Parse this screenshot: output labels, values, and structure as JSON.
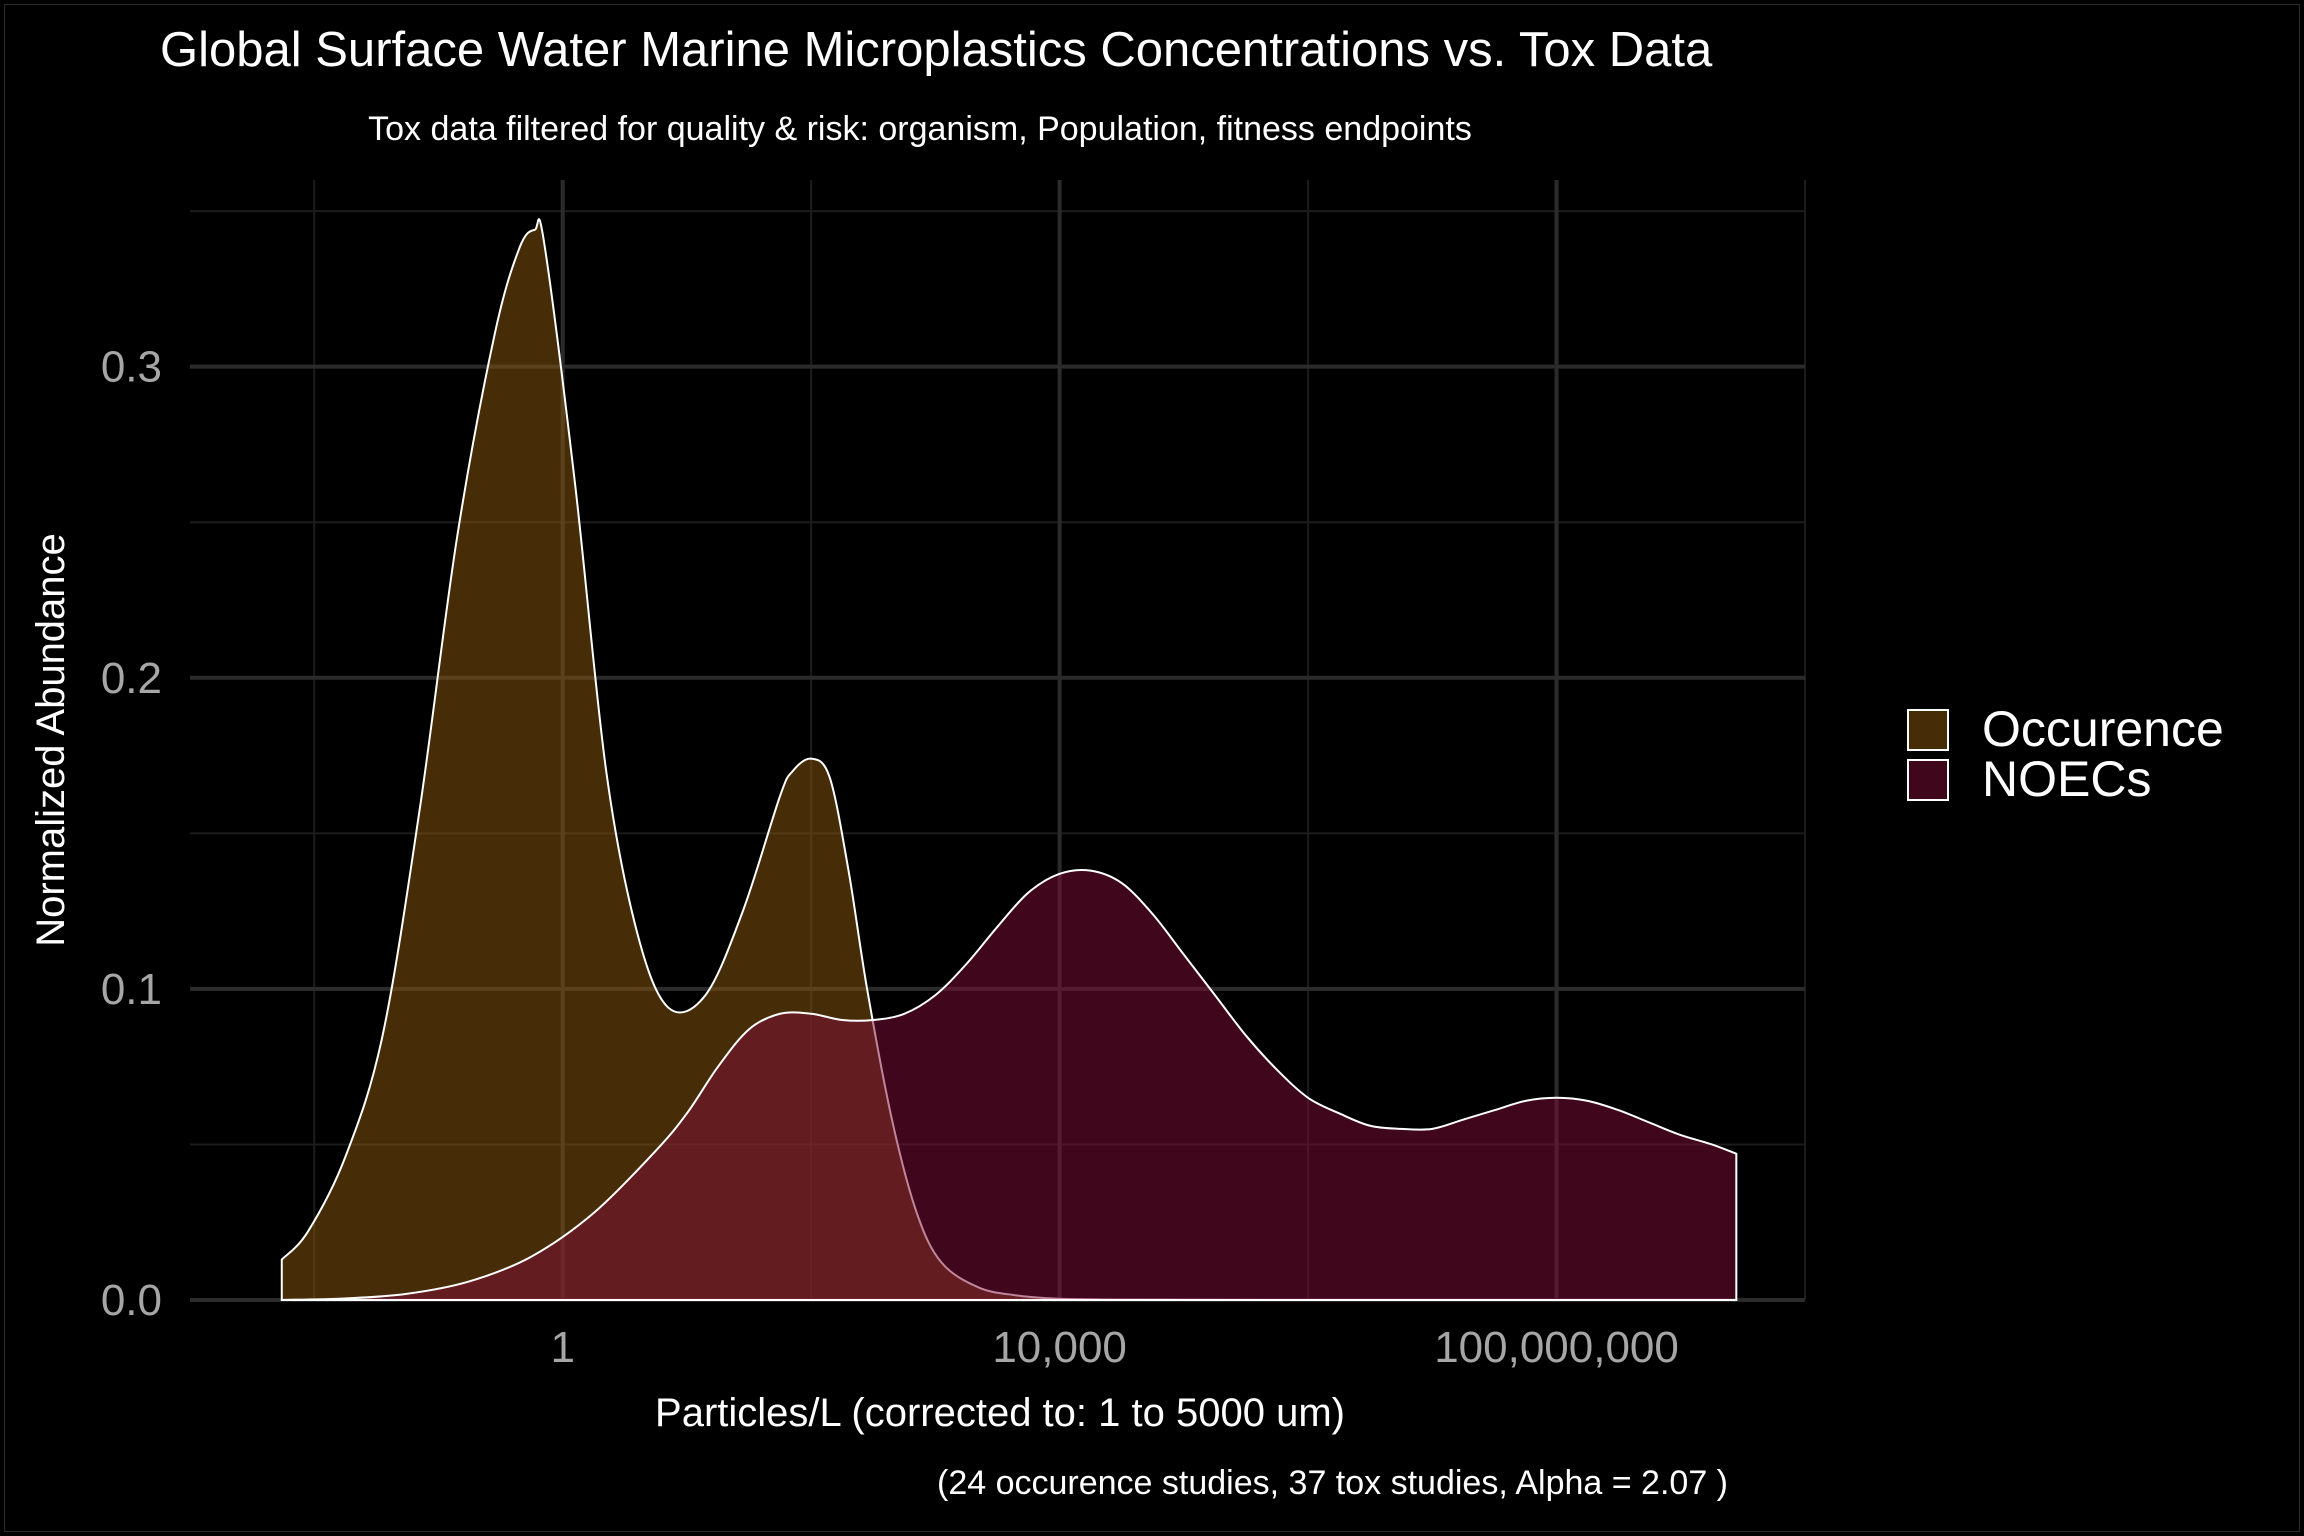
{
  "chart_data": {
    "type": "area",
    "title": "Global Surface Water Marine Microplastics Concentrations vs. Tox Data",
    "subtitle": "Tox data filtered for quality & risk: organism, Population, fitness endpoints",
    "xlabel": "Particles/L (corrected to: 1 to 5000 um)",
    "ylabel": "Normalized Abundance",
    "caption": "(24 occurence studies, 37 tox studies, Alpha =  2.07 )",
    "x_scale": "log10",
    "xlim": [
      0.001,
      10000000000.0
    ],
    "ylim": [
      0,
      0.36
    ],
    "x_ticks": [
      {
        "value": 1,
        "label": "1"
      },
      {
        "value": 10000,
        "label": "10,000"
      },
      {
        "value": 100000000,
        "label": "100,000,000"
      }
    ],
    "y_ticks": [
      {
        "value": 0.0,
        "label": "0.0"
      },
      {
        "value": 0.1,
        "label": "0.1"
      },
      {
        "value": 0.2,
        "label": "0.2"
      },
      {
        "value": 0.3,
        "label": "0.3"
      }
    ],
    "grid": true,
    "legend_position": "right",
    "series": [
      {
        "name": "Occurence",
        "color": "#8b5a0f",
        "x": [
          0.00548,
          0.0089,
          0.0178,
          0.0355,
          0.0708,
          0.141,
          0.282,
          0.447,
          0.596,
          0.708,
          1.26,
          2.24,
          3.98,
          7.08,
          14.1,
          28.2,
          56.2,
          71,
          100,
          141,
          200,
          282,
          447,
          708,
          1122,
          2239,
          4467,
          8913,
          17783,
          35481,
          1000000.0,
          100000000.0,
          1000000000.0,
          2800000000.0
        ],
        "y": [
          0.013,
          0.022,
          0.046,
          0.085,
          0.158,
          0.245,
          0.31,
          0.338,
          0.344,
          0.34,
          0.262,
          0.17,
          0.118,
          0.094,
          0.098,
          0.125,
          0.162,
          0.17,
          0.174,
          0.168,
          0.138,
          0.1,
          0.058,
          0.028,
          0.012,
          0.004,
          0.0015,
          0.0005,
          0.0002,
          0.0001,
          0,
          0,
          0,
          0
        ]
      },
      {
        "name": "NOECs",
        "color": "#800c37",
        "x": [
          0.00548,
          0.0178,
          0.0562,
          0.178,
          0.562,
          1.78,
          5.62,
          10,
          17.8,
          31.6,
          56.2,
          100,
          178,
          316,
          562,
          1000,
          1778,
          3162,
          5623,
          10000,
          17783,
          31623,
          56234,
          100000.0,
          178000.0,
          316000.0,
          562000.0,
          1000000.0,
          1780000.0,
          3160000.0,
          5620000.0,
          10000000.0,
          17800000.0,
          31600000.0,
          56200000.0,
          100000000.0,
          178000000.0,
          316000000.0,
          562000000.0,
          1000000000.0,
          1780000000.0,
          2800000000.0
        ],
        "y": [
          0,
          0.0005,
          0.002,
          0.006,
          0.014,
          0.028,
          0.048,
          0.06,
          0.075,
          0.087,
          0.092,
          0.092,
          0.09,
          0.09,
          0.092,
          0.098,
          0.108,
          0.12,
          0.131,
          0.137,
          0.138,
          0.134,
          0.124,
          0.111,
          0.098,
          0.085,
          0.074,
          0.065,
          0.06,
          0.056,
          0.055,
          0.055,
          0.058,
          0.061,
          0.064,
          0.065,
          0.064,
          0.061,
          0.057,
          0.053,
          0.05,
          0.047
        ]
      }
    ]
  }
}
